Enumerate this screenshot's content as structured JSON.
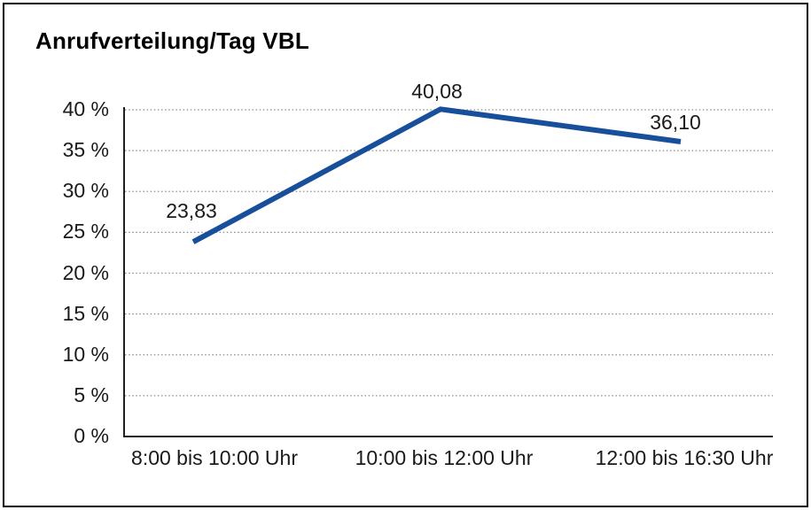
{
  "window": {
    "background": "#ffffff",
    "border_color": "#000000"
  },
  "chart_data": {
    "type": "line",
    "title": "Anrufverteilung/Tag VBL",
    "categories": [
      "8:00 bis 10:00 Uhr",
      "10:00 bis 12:00 Uhr",
      "12:00 bis 16:30 Uhr"
    ],
    "values": [
      23.83,
      40.08,
      36.1
    ],
    "data_labels": [
      "23,83",
      "40,08",
      "36,10"
    ],
    "y_ticks": [
      "0 %",
      "5 %",
      "10 %",
      "15 %",
      "20 %",
      "25 %",
      "30 %",
      "35 %",
      "40 %"
    ],
    "y_tick_values": [
      0,
      5,
      10,
      15,
      20,
      25,
      30,
      35,
      40
    ],
    "ylim": [
      0,
      40
    ],
    "xlabel": "",
    "ylabel": "",
    "grid": "horizontal-dotted",
    "legend": "none",
    "line_color": "#174F9B",
    "grid_color": "#8c8c8c",
    "axis_color": "#1f1f1f",
    "text_color": "#1a1a1a"
  }
}
